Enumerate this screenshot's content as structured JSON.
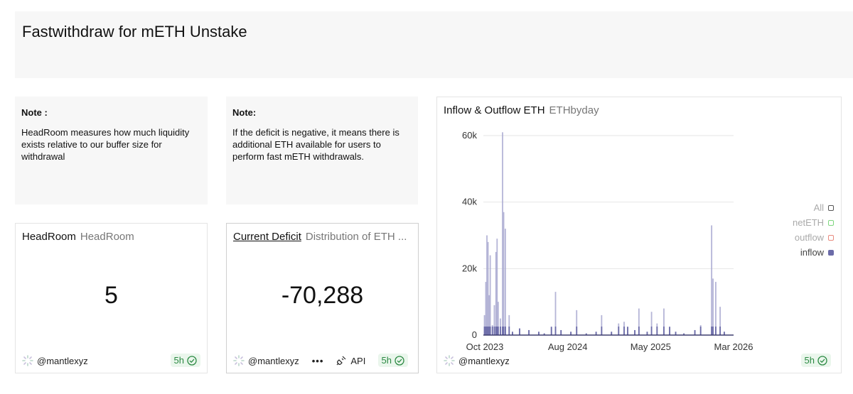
{
  "dashboard": {
    "title": "Fastwithdraw for mETH Unstake"
  },
  "notes": [
    {
      "heading": "Note :",
      "body": "HeadRoom measures how much liquidity exists relative to our buffer size for withdrawal"
    },
    {
      "heading": "Note:",
      "body": "If the deficit is negative, it means there is additional ETH available for users to perform fast mETH withdrawals."
    }
  ],
  "headroom": {
    "name": "HeadRoom",
    "subtitle": "HeadRoom",
    "value": "5",
    "user": "@mantlexyz",
    "freshness": "5h"
  },
  "deficit": {
    "name": "Current Deficit",
    "subtitle": "Distribution of ETH ...",
    "value": "-70,288",
    "user": "@mantlexyz",
    "more": "•••",
    "api_label": "API",
    "freshness": "5h"
  },
  "flow": {
    "name": "Inflow & Outflow ETH",
    "subtitle": "ETHbyday",
    "user": "@mantlexyz",
    "freshness": "5h"
  },
  "colors": {
    "inflow": "#6b6ba8",
    "inflow_stroke": "#a8a8d0",
    "netETH": "#7ed67e",
    "outflow": "#e88a7e",
    "all": "#888888",
    "badge_text": "#2c8a43"
  },
  "chart_data": {
    "type": "bar",
    "title": "Inflow & Outflow ETH",
    "subtitle": "ETHbyday",
    "xlabel": "",
    "ylabel": "",
    "x_ticks": [
      "Oct 2023",
      "Aug 2024",
      "May 2025",
      "Mar 2026"
    ],
    "y_ticks": [
      "0",
      "20k",
      "40k",
      "60k"
    ],
    "ylim": [
      0,
      60000
    ],
    "grid": true,
    "legend_position": "right",
    "legend": [
      {
        "label": "All",
        "color": "#888888",
        "active": false
      },
      {
        "label": "netETH",
        "color": "#7ed67e",
        "active": false
      },
      {
        "label": "outflow",
        "color": "#e88a7e",
        "active": false
      },
      {
        "label": "inflow",
        "color": "#6b6ba8",
        "active": true
      }
    ],
    "x_domain": [
      "2023-10-01",
      "2026-03-31"
    ],
    "series": [
      {
        "name": "inflow",
        "points": [
          {
            "date": "2023-10-05",
            "value": 6000
          },
          {
            "date": "2023-10-10",
            "value": 16000
          },
          {
            "date": "2023-10-14",
            "value": 30000
          },
          {
            "date": "2023-10-18",
            "value": 28000
          },
          {
            "date": "2023-10-22",
            "value": 12000
          },
          {
            "date": "2023-10-26",
            "value": 24000
          },
          {
            "date": "2023-11-03",
            "value": 3000
          },
          {
            "date": "2023-11-10",
            "value": 9000
          },
          {
            "date": "2023-11-16",
            "value": 25000
          },
          {
            "date": "2023-11-20",
            "value": 29000
          },
          {
            "date": "2023-11-24",
            "value": 10000
          },
          {
            "date": "2023-12-02",
            "value": 5000
          },
          {
            "date": "2023-12-10",
            "value": 61000
          },
          {
            "date": "2023-12-14",
            "value": 37000
          },
          {
            "date": "2023-12-20",
            "value": 32000
          },
          {
            "date": "2024-01-03",
            "value": 6000
          },
          {
            "date": "2024-01-15",
            "value": 1000
          },
          {
            "date": "2024-02-10",
            "value": 2000
          },
          {
            "date": "2024-03-15",
            "value": 1500
          },
          {
            "date": "2024-04-20",
            "value": 1000
          },
          {
            "date": "2024-05-10",
            "value": 500
          },
          {
            "date": "2024-06-05",
            "value": 2500
          },
          {
            "date": "2024-06-20",
            "value": 13000
          },
          {
            "date": "2024-07-10",
            "value": 1500
          },
          {
            "date": "2024-08-15",
            "value": 1000
          },
          {
            "date": "2024-09-05",
            "value": 7500
          },
          {
            "date": "2024-10-10",
            "value": 500
          },
          {
            "date": "2024-11-15",
            "value": 1000
          },
          {
            "date": "2024-12-05",
            "value": 6000
          },
          {
            "date": "2025-01-10",
            "value": 1000
          },
          {
            "date": "2025-02-05",
            "value": 3500
          },
          {
            "date": "2025-02-25",
            "value": 4000
          },
          {
            "date": "2025-03-10",
            "value": 2500
          },
          {
            "date": "2025-04-05",
            "value": 1500
          },
          {
            "date": "2025-04-20",
            "value": 8000
          },
          {
            "date": "2025-05-20",
            "value": 1000
          },
          {
            "date": "2025-06-05",
            "value": 7000
          },
          {
            "date": "2025-06-25",
            "value": 3500
          },
          {
            "date": "2025-07-20",
            "value": 8000
          },
          {
            "date": "2025-08-10",
            "value": 2500
          },
          {
            "date": "2025-09-01",
            "value": 1000
          },
          {
            "date": "2025-10-01",
            "value": 500
          },
          {
            "date": "2025-11-10",
            "value": 1500
          },
          {
            "date": "2025-12-01",
            "value": 3000
          },
          {
            "date": "2026-01-10",
            "value": 33000
          },
          {
            "date": "2026-01-15",
            "value": 17000
          },
          {
            "date": "2026-01-25",
            "value": 16000
          },
          {
            "date": "2026-02-10",
            "value": 8500
          },
          {
            "date": "2026-02-25",
            "value": 1000
          }
        ]
      }
    ]
  }
}
